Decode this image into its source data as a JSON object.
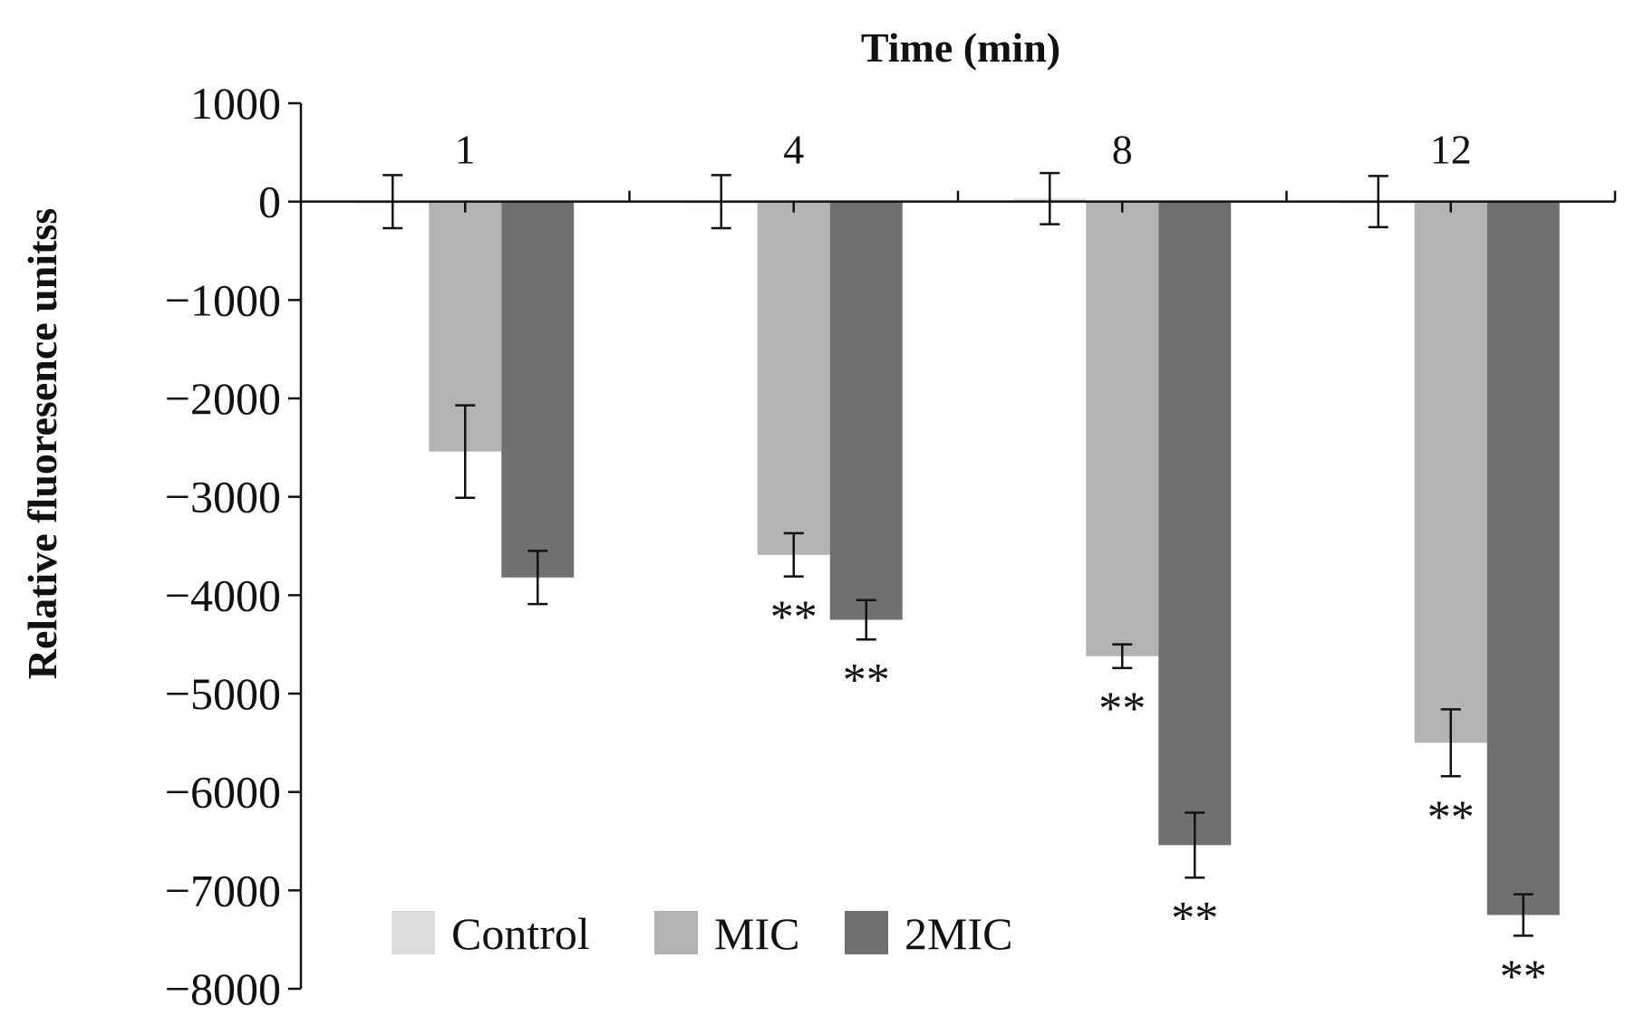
{
  "chart_data": {
    "type": "bar",
    "title": "",
    "xlabel": "Time (min)",
    "ylabel": "Relative fluoresence unitss",
    "ylim": [
      -8000,
      1000
    ],
    "yticks": [
      "1000",
      "0",
      "−1000",
      "−2000",
      "−3000",
      "−4000",
      "−5000",
      "−6000",
      "−7000",
      "−8000"
    ],
    "ytick_values": [
      1000,
      0,
      -1000,
      -2000,
      -3000,
      -4000,
      -5000,
      -6000,
      -7000,
      -8000
    ],
    "categories": [
      "1",
      "4",
      "8",
      "12"
    ],
    "legend_position": "bottom-left",
    "series": [
      {
        "name": "Control",
        "color": "#dcdcdc",
        "values": [
          0,
          0,
          30,
          0
        ],
        "errors": [
          270,
          270,
          260,
          260
        ],
        "significance": [
          "",
          "",
          "",
          ""
        ]
      },
      {
        "name": "MIC",
        "color": "#b3b3b3",
        "values": [
          -2540,
          -3590,
          -4620,
          -5500
        ],
        "errors": [
          470,
          220,
          120,
          340
        ],
        "significance": [
          "",
          "**",
          "**",
          "**"
        ]
      },
      {
        "name": "2MIC",
        "color": "#707070",
        "values": [
          -3820,
          -4250,
          -6540,
          -7250
        ],
        "errors": [
          270,
          200,
          330,
          210
        ],
        "significance": [
          "",
          "**",
          "**",
          "**"
        ]
      }
    ]
  }
}
